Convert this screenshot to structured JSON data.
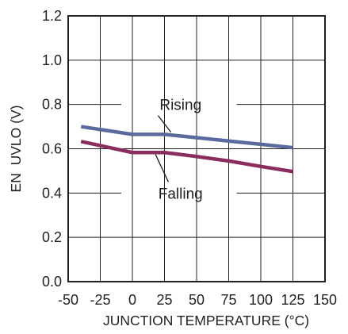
{
  "chart_data": {
    "type": "line",
    "title": "",
    "xlabel": "JUNCTION TEMPERATURE (°C)",
    "ylabel": "EN  UVLO (V)",
    "xlim": [
      -50,
      150
    ],
    "ylim": [
      0.0,
      1.2
    ],
    "x_ticks": [
      -50,
      -25,
      0,
      25,
      50,
      75,
      100,
      125,
      150
    ],
    "x_tick_labels": [
      "-50",
      "-25",
      "0",
      "25",
      "50",
      "75",
      "100",
      "125",
      "150"
    ],
    "y_ticks": [
      0.0,
      0.2,
      0.4,
      0.6,
      0.8,
      1.0,
      1.2
    ],
    "y_tick_labels": [
      "0.0",
      "0.2",
      "0.4",
      "0.6",
      "0.8",
      "1.0",
      "1.2"
    ],
    "grid": true,
    "series": [
      {
        "name": "Rising",
        "color": "#5b6a9c",
        "x": [
          -40,
          0,
          25,
          50,
          75,
          100,
          125
        ],
        "y": [
          0.7,
          0.665,
          0.665,
          0.65,
          0.635,
          0.62,
          0.605
        ]
      },
      {
        "name": "Falling",
        "color": "#8b2c5e",
        "x": [
          -40,
          0,
          25,
          50,
          75,
          100,
          125
        ],
        "y": [
          0.633,
          0.583,
          0.583,
          0.565,
          0.545,
          0.52,
          0.497
        ]
      }
    ],
    "annotations": [
      {
        "text": "Rising",
        "series": "Rising"
      },
      {
        "text": "Falling",
        "series": "Falling"
      }
    ]
  }
}
